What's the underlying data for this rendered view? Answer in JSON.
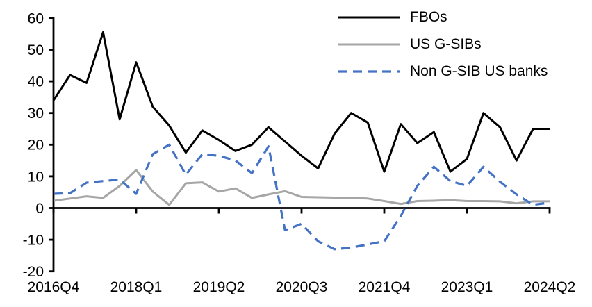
{
  "chart_data": {
    "type": "line",
    "title": "",
    "xlabel": "",
    "ylabel": "",
    "ylim": [
      -20,
      60
    ],
    "ytick_step": 10,
    "grid": false,
    "legend_position": "top-right",
    "background_color": "#ffffff",
    "axis_color": "#000000",
    "categories": [
      "2016Q4",
      "2017Q1",
      "2017Q2",
      "2017Q3",
      "2017Q4",
      "2018Q1",
      "2018Q2",
      "2018Q3",
      "2018Q4",
      "2019Q1",
      "2019Q2",
      "2019Q3",
      "2019Q4",
      "2020Q1",
      "2020Q2",
      "2020Q3",
      "2020Q4",
      "2021Q1",
      "2021Q2",
      "2021Q3",
      "2021Q4",
      "2022Q1",
      "2022Q2",
      "2022Q3",
      "2022Q4",
      "2023Q1",
      "2023Q2",
      "2023Q3",
      "2023Q4",
      "2024Q1",
      "2024Q2"
    ],
    "y_axis": {
      "ticks": [
        {
          "value": 60,
          "label": "60"
        },
        {
          "value": 50,
          "label": "50"
        },
        {
          "value": 40,
          "label": "40"
        },
        {
          "value": 30,
          "label": "30"
        },
        {
          "value": 20,
          "label": "20"
        },
        {
          "value": 10,
          "label": "10"
        },
        {
          "value": 0,
          "label": "0"
        },
        {
          "value": -10,
          "label": "-10"
        },
        {
          "value": -20,
          "label": "-20"
        }
      ]
    },
    "x_axis": {
      "ticks": [
        {
          "index": 0,
          "label": "2016Q4"
        },
        {
          "index": 5,
          "label": "2018Q1"
        },
        {
          "index": 10,
          "label": "2019Q2"
        },
        {
          "index": 15,
          "label": "2020Q3"
        },
        {
          "index": 20,
          "label": "2021Q4"
        },
        {
          "index": 25,
          "label": "2023Q1"
        },
        {
          "index": 30,
          "label": "2024Q2"
        }
      ]
    },
    "series": [
      {
        "name": "FBOs",
        "color": "#000000",
        "style": "solid",
        "line_width": 3,
        "values": [
          34,
          42,
          39.5,
          55.5,
          28,
          46,
          32,
          26,
          17.5,
          24.5,
          21.5,
          18,
          20,
          25.5,
          21,
          16.5,
          12.5,
          23.5,
          30,
          27,
          11.5,
          26.5,
          20.5,
          24,
          11.5,
          15.5,
          30,
          25.5,
          15,
          25,
          25
        ]
      },
      {
        "name": "US G-SIBs",
        "color": "#a6a6a6",
        "style": "solid",
        "line_width": 3,
        "values": [
          2.3,
          3,
          3.7,
          3.2,
          7,
          12,
          5.2,
          1,
          7.8,
          8.1,
          5.2,
          6.2,
          3.2,
          4.3,
          5.3,
          3.5,
          3.4,
          3.3,
          3.2,
          3,
          2.2,
          1.3,
          2.2,
          2.3,
          2.5,
          2.2,
          2.2,
          2.1,
          1.5,
          2.1,
          2.1
        ]
      },
      {
        "name": "Non G-SIB US banks",
        "color": "#4472c4",
        "style": "dashed",
        "line_width": 3.2,
        "dash_pattern": [
          13,
          8
        ],
        "values": [
          4.5,
          4.7,
          8,
          8.5,
          9,
          4.5,
          17,
          20,
          10.5,
          17,
          16.5,
          15,
          11,
          19.5,
          -7,
          -5,
          -10.5,
          -13,
          -12.5,
          -11.5,
          -10.5,
          -2.5,
          7,
          13,
          8.5,
          7,
          13,
          8.3,
          4.3,
          1,
          1.7
        ]
      }
    ]
  }
}
